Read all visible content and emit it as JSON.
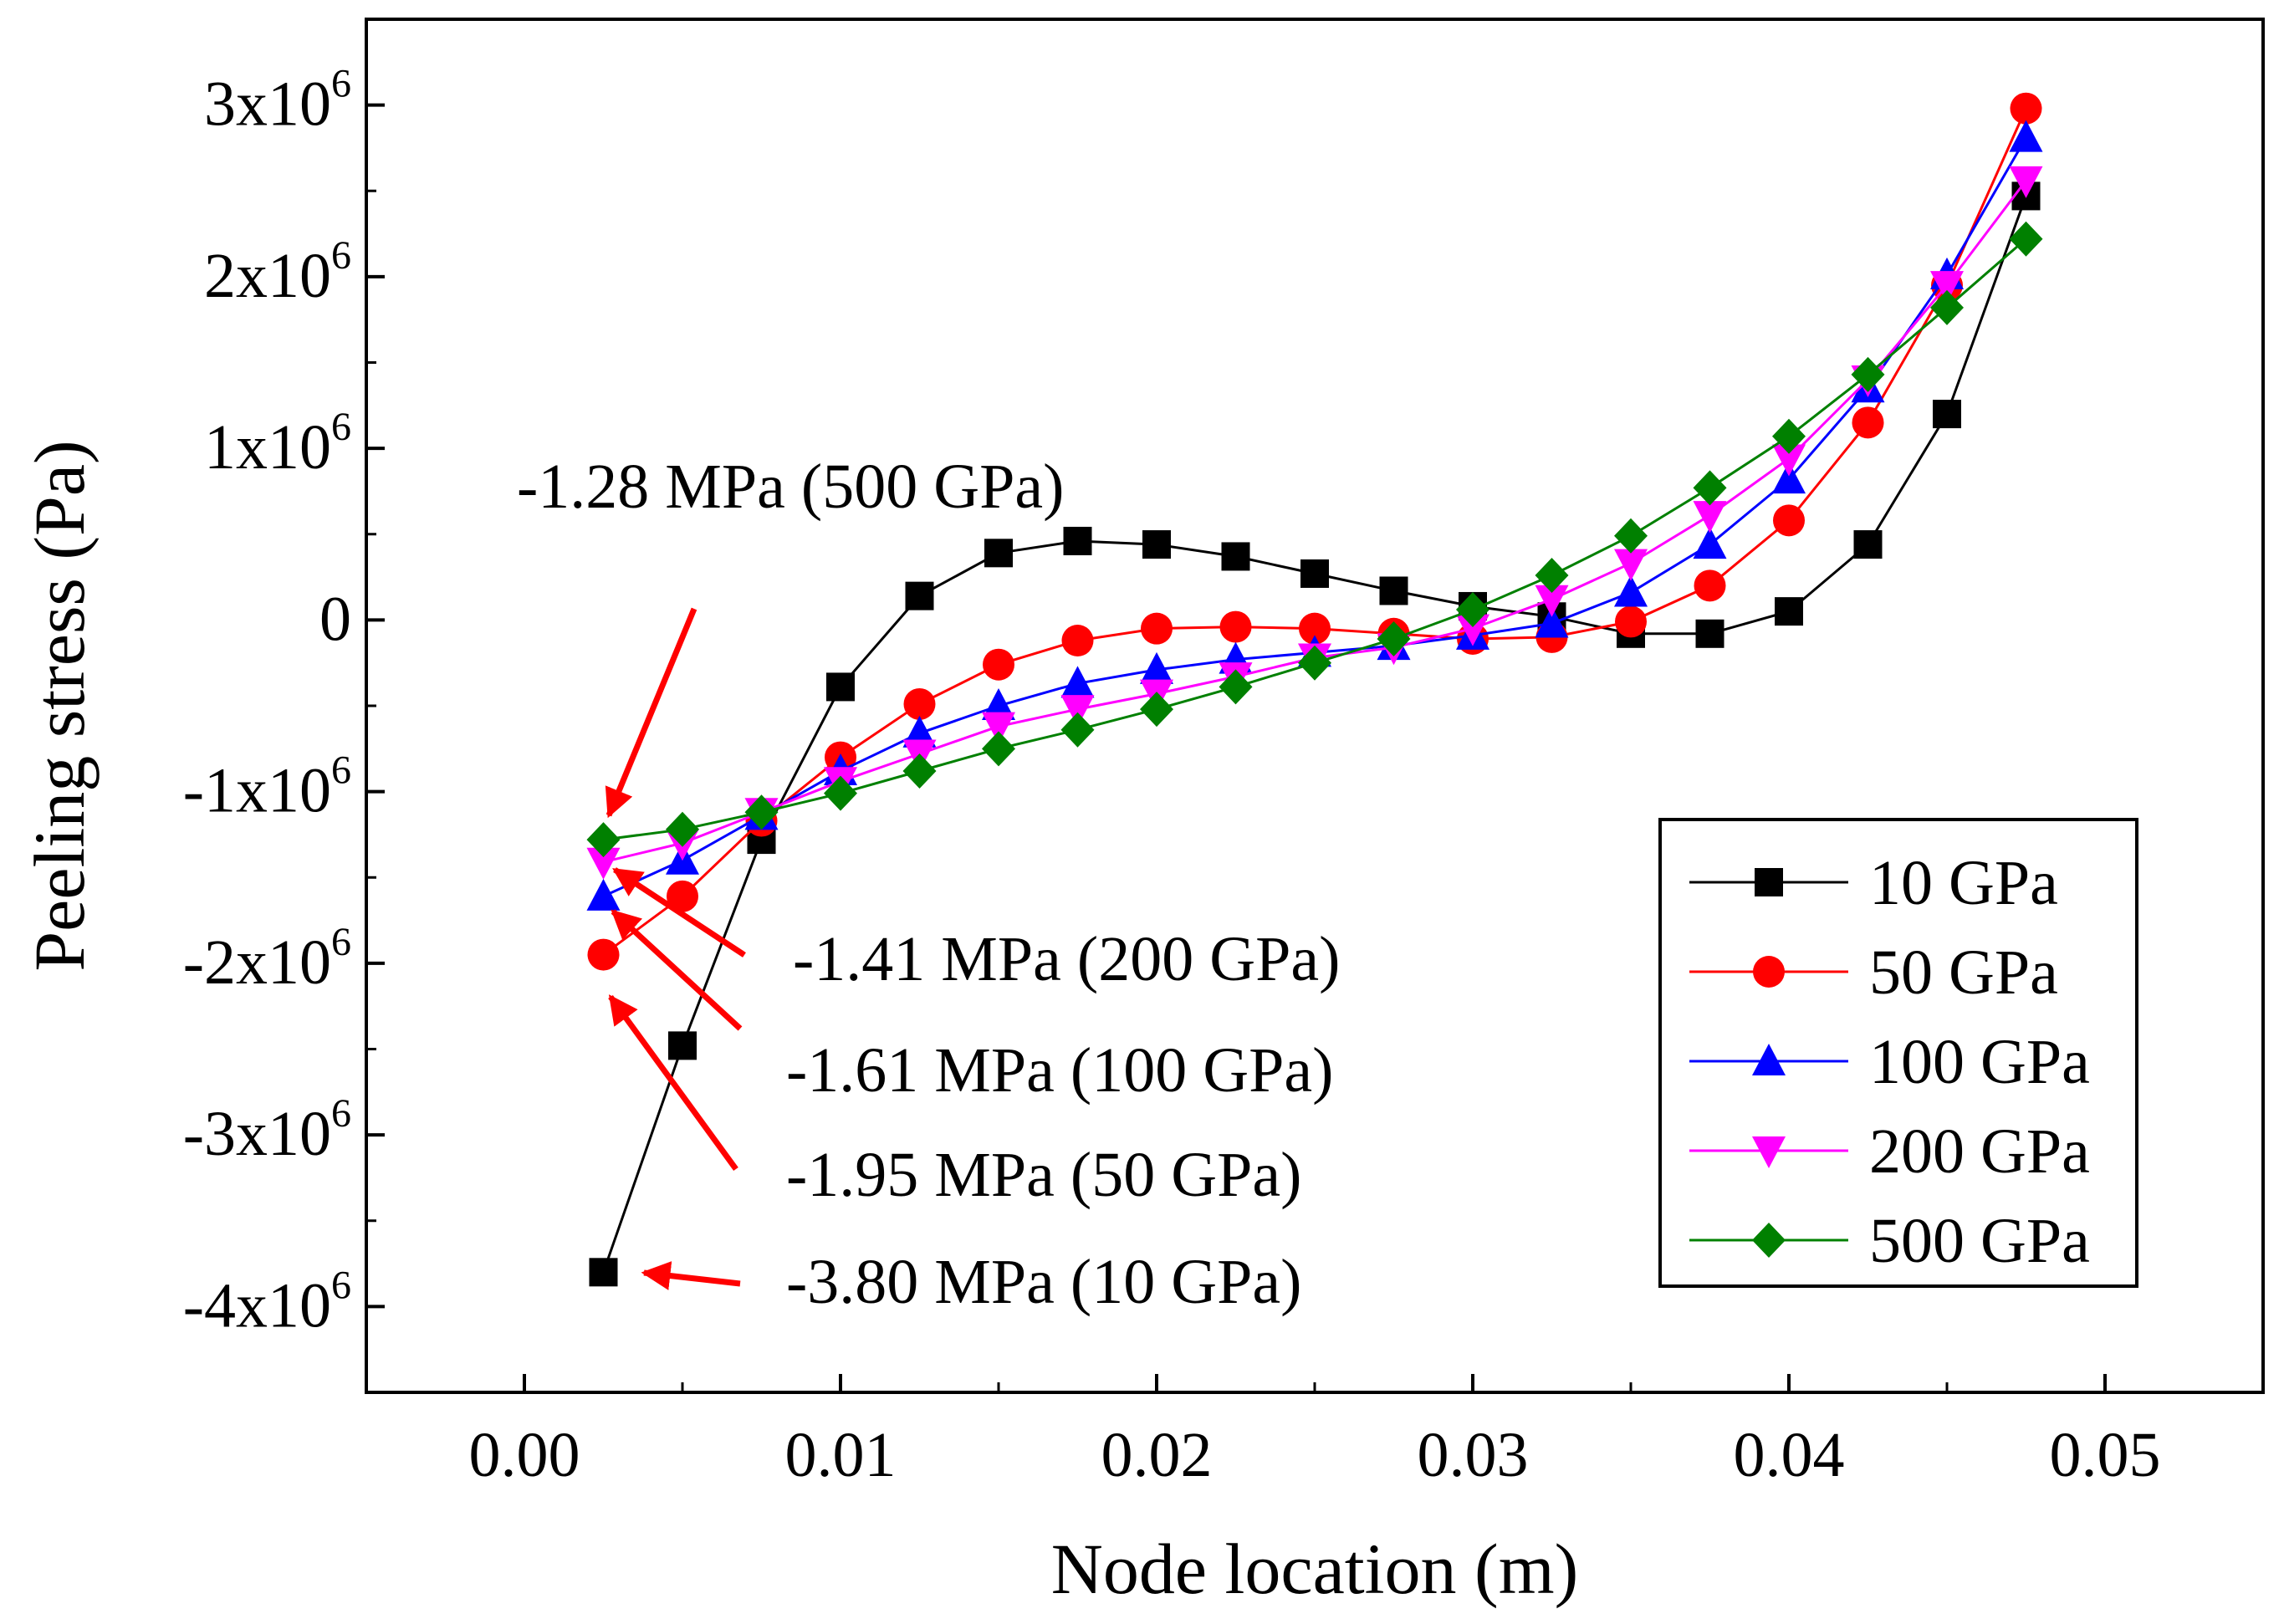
{
  "chart_data": {
    "type": "line",
    "xlabel": "Node location (m)",
    "ylabel": "Peeling stress (Pa)",
    "xlim": [
      -0.005,
      0.055
    ],
    "ylim": [
      -4500000.0,
      3500000.0
    ],
    "xticks": [
      0.0,
      0.01,
      0.02,
      0.03,
      0.04,
      0.05
    ],
    "xtick_labels": [
      "0.00",
      "0.01",
      "0.02",
      "0.03",
      "0.04",
      "0.05"
    ],
    "yticks": [
      3000000.0,
      2000000.0,
      1000000.0,
      0,
      -1000000.0,
      -2000000.0,
      -3000000.0,
      -4000000.0
    ],
    "ytick_labels": [
      {
        "mant": "3x10",
        "exp": "6"
      },
      {
        "mant": "2x10",
        "exp": "6"
      },
      {
        "mant": "1x10",
        "exp": "6"
      },
      {
        "mant": "0",
        "exp": ""
      },
      {
        "mant": "-1x10",
        "exp": "6"
      },
      {
        "mant": "-2x10",
        "exp": "6"
      },
      {
        "mant": "-3x10",
        "exp": "6"
      },
      {
        "mant": "-4x10",
        "exp": "6"
      }
    ],
    "x": [
      0.0025,
      0.005,
      0.0075,
      0.01,
      0.0125,
      0.015,
      0.0175,
      0.02,
      0.0225,
      0.025,
      0.0275,
      0.03,
      0.0325,
      0.035,
      0.0375,
      0.04,
      0.0425,
      0.045,
      0.0475
    ],
    "series": [
      {
        "name": "10 GPa",
        "color": "#000000",
        "marker": "square",
        "values": [
          -3800000,
          -2480000,
          -1280000,
          -390000,
          140000,
          390000,
          460000,
          440000,
          370000,
          270000,
          170000,
          80000,
          20000,
          -80000,
          -80000,
          50000,
          440000,
          1200000,
          2470000
        ]
      },
      {
        "name": "50 GPa",
        "color": "#ff0000",
        "marker": "circle",
        "values": [
          -1950000,
          -1610000,
          -1170000,
          -800000,
          -490000,
          -260000,
          -120000,
          -50000,
          -40000,
          -50000,
          -80000,
          -110000,
          -100000,
          -10000,
          200000,
          580000,
          1150000,
          1950000,
          2980000
        ]
      },
      {
        "name": "100 GPa",
        "color": "#0000ff",
        "marker": "triangle-up",
        "values": [
          -1610000,
          -1400000,
          -1140000,
          -880000,
          -660000,
          -500000,
          -370000,
          -290000,
          -230000,
          -190000,
          -150000,
          -90000,
          -20000,
          160000,
          440000,
          820000,
          1350000,
          2010000,
          2810000
        ]
      },
      {
        "name": "200 GPa",
        "color": "#ff00ff",
        "marker": "triangle-down",
        "values": [
          -1410000,
          -1300000,
          -1120000,
          -940000,
          -780000,
          -620000,
          -520000,
          -430000,
          -330000,
          -220000,
          -160000,
          -50000,
          120000,
          330000,
          610000,
          940000,
          1400000,
          1950000,
          2560000
        ]
      },
      {
        "name": "500 GPa",
        "color": "#008000",
        "marker": "diamond",
        "values": [
          -1280000,
          -1220000,
          -1120000,
          -1010000,
          -880000,
          -750000,
          -640000,
          -520000,
          -390000,
          -250000,
          -110000,
          60000,
          260000,
          490000,
          770000,
          1070000,
          1430000,
          1820000,
          2220000
        ]
      }
    ],
    "annotations": [
      {
        "text": "-1.28 MPa (500 GPa)",
        "target_x": 0.0025,
        "target_y": -1280000
      },
      {
        "text": "-1.41 MPa (200 GPa)",
        "target_x": 0.0025,
        "target_y": -1410000
      },
      {
        "text": "-1.61 MPa (100 GPa)",
        "target_x": 0.0025,
        "target_y": -1610000
      },
      {
        "text": "-1.95 MPa (50 GPa)",
        "target_x": 0.0025,
        "target_y": -1950000
      },
      {
        "text": "-3.80 MPa (10 GPa)",
        "target_x": 0.0025,
        "target_y": -3800000
      }
    ],
    "annotation_color": "#ff0000",
    "legend_position": "lower-right"
  }
}
